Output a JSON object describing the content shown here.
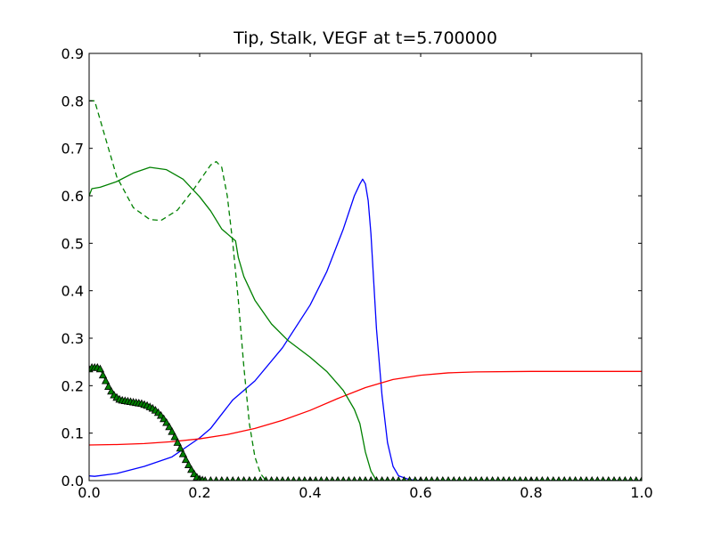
{
  "chart_data": {
    "type": "line",
    "title": "Tip, Stalk, VEGF at t=5.700000",
    "xlabel": "",
    "ylabel": "",
    "xlim": [
      0,
      1
    ],
    "ylim": [
      0,
      0.9
    ],
    "x_ticks": [
      "0.0",
      "0.2",
      "0.4",
      "0.6",
      "0.8",
      "1.0"
    ],
    "y_ticks": [
      "0.0",
      "0.1",
      "0.2",
      "0.3",
      "0.4",
      "0.5",
      "0.6",
      "0.7",
      "0.8",
      "0.9"
    ],
    "grid": false,
    "legend": "none",
    "series": [
      {
        "color": "#0000ff",
        "style": "solid",
        "points": [
          [
            0.0,
            0.01
          ],
          [
            0.01,
            0.009
          ],
          [
            0.05,
            0.015
          ],
          [
            0.1,
            0.03
          ],
          [
            0.15,
            0.05
          ],
          [
            0.2,
            0.09
          ],
          [
            0.22,
            0.11
          ],
          [
            0.24,
            0.14
          ],
          [
            0.26,
            0.17
          ],
          [
            0.3,
            0.21
          ],
          [
            0.35,
            0.28
          ],
          [
            0.4,
            0.37
          ],
          [
            0.43,
            0.44
          ],
          [
            0.46,
            0.53
          ],
          [
            0.48,
            0.6
          ],
          [
            0.49,
            0.625
          ],
          [
            0.495,
            0.635
          ],
          [
            0.5,
            0.625
          ],
          [
            0.505,
            0.59
          ],
          [
            0.51,
            0.52
          ],
          [
            0.515,
            0.42
          ],
          [
            0.52,
            0.32
          ],
          [
            0.53,
            0.18
          ],
          [
            0.54,
            0.08
          ],
          [
            0.55,
            0.03
          ],
          [
            0.56,
            0.01
          ],
          [
            0.58,
            0.002
          ],
          [
            0.6,
            0.0
          ],
          [
            1.0,
            0.0
          ]
        ]
      },
      {
        "color": "#ff0000",
        "style": "solid",
        "points": [
          [
            0.0,
            0.075
          ],
          [
            0.05,
            0.076
          ],
          [
            0.1,
            0.078
          ],
          [
            0.15,
            0.082
          ],
          [
            0.2,
            0.088
          ],
          [
            0.25,
            0.097
          ],
          [
            0.3,
            0.11
          ],
          [
            0.35,
            0.127
          ],
          [
            0.4,
            0.148
          ],
          [
            0.45,
            0.173
          ],
          [
            0.5,
            0.196
          ],
          [
            0.55,
            0.213
          ],
          [
            0.6,
            0.222
          ],
          [
            0.65,
            0.227
          ],
          [
            0.7,
            0.229
          ],
          [
            0.8,
            0.23
          ],
          [
            1.0,
            0.23
          ]
        ]
      },
      {
        "color": "#008000",
        "style": "solid",
        "points": [
          [
            0.0,
            0.6
          ],
          [
            0.005,
            0.615
          ],
          [
            0.02,
            0.618
          ],
          [
            0.05,
            0.63
          ],
          [
            0.08,
            0.648
          ],
          [
            0.11,
            0.66
          ],
          [
            0.14,
            0.655
          ],
          [
            0.17,
            0.635
          ],
          [
            0.2,
            0.598
          ],
          [
            0.22,
            0.568
          ],
          [
            0.24,
            0.53
          ],
          [
            0.26,
            0.51
          ],
          [
            0.265,
            0.505
          ],
          [
            0.27,
            0.47
          ],
          [
            0.28,
            0.43
          ],
          [
            0.3,
            0.38
          ],
          [
            0.33,
            0.33
          ],
          [
            0.36,
            0.295
          ],
          [
            0.4,
            0.26
          ],
          [
            0.43,
            0.23
          ],
          [
            0.46,
            0.19
          ],
          [
            0.48,
            0.15
          ],
          [
            0.49,
            0.12
          ],
          [
            0.5,
            0.06
          ],
          [
            0.51,
            0.02
          ],
          [
            0.52,
            0.0
          ],
          [
            1.0,
            0.0
          ]
        ]
      },
      {
        "color": "#008000",
        "style": "dashed",
        "points": [
          [
            0.0,
            0.8
          ],
          [
            0.01,
            0.8
          ],
          [
            0.03,
            0.72
          ],
          [
            0.05,
            0.64
          ],
          [
            0.08,
            0.575
          ],
          [
            0.11,
            0.55
          ],
          [
            0.13,
            0.548
          ],
          [
            0.16,
            0.57
          ],
          [
            0.19,
            0.615
          ],
          [
            0.22,
            0.665
          ],
          [
            0.23,
            0.672
          ],
          [
            0.24,
            0.66
          ],
          [
            0.25,
            0.6
          ],
          [
            0.26,
            0.5
          ],
          [
            0.27,
            0.38
          ],
          [
            0.28,
            0.24
          ],
          [
            0.29,
            0.12
          ],
          [
            0.3,
            0.05
          ],
          [
            0.31,
            0.015
          ],
          [
            0.32,
            0.0
          ]
        ]
      },
      {
        "color": "#008000",
        "style": "triangle-markers",
        "points": [
          [
            0.0,
            0.235
          ],
          [
            0.005,
            0.238
          ],
          [
            0.01,
            0.238
          ],
          [
            0.015,
            0.238
          ],
          [
            0.02,
            0.235
          ],
          [
            0.025,
            0.222
          ],
          [
            0.03,
            0.21
          ],
          [
            0.035,
            0.198
          ],
          [
            0.04,
            0.188
          ],
          [
            0.045,
            0.18
          ],
          [
            0.05,
            0.175
          ],
          [
            0.055,
            0.171
          ],
          [
            0.06,
            0.169
          ],
          [
            0.065,
            0.168
          ],
          [
            0.07,
            0.167
          ],
          [
            0.075,
            0.166
          ],
          [
            0.08,
            0.165
          ],
          [
            0.085,
            0.164
          ],
          [
            0.09,
            0.163
          ],
          [
            0.095,
            0.162
          ],
          [
            0.1,
            0.16
          ],
          [
            0.105,
            0.158
          ],
          [
            0.11,
            0.155
          ],
          [
            0.115,
            0.152
          ],
          [
            0.12,
            0.148
          ],
          [
            0.125,
            0.143
          ],
          [
            0.13,
            0.137
          ],
          [
            0.135,
            0.13
          ],
          [
            0.14,
            0.122
          ],
          [
            0.145,
            0.113
          ],
          [
            0.15,
            0.103
          ],
          [
            0.155,
            0.092
          ],
          [
            0.16,
            0.08
          ],
          [
            0.165,
            0.068
          ],
          [
            0.17,
            0.056
          ],
          [
            0.175,
            0.044
          ],
          [
            0.18,
            0.033
          ],
          [
            0.185,
            0.023
          ],
          [
            0.19,
            0.014
          ],
          [
            0.195,
            0.007
          ],
          [
            0.2,
            0.003
          ],
          [
            0.205,
            0.001
          ],
          [
            0.21,
            0.0
          ],
          [
            0.22,
            0.0
          ],
          [
            0.23,
            0.0
          ],
          [
            0.24,
            0.0
          ],
          [
            0.25,
            0.0
          ],
          [
            0.26,
            0.0
          ],
          [
            0.27,
            0.0
          ],
          [
            0.28,
            0.0
          ],
          [
            0.29,
            0.0
          ],
          [
            0.3,
            0.0
          ],
          [
            0.31,
            0.0
          ],
          [
            0.32,
            0.0
          ],
          [
            0.33,
            0.0
          ],
          [
            0.34,
            0.0
          ],
          [
            0.35,
            0.0
          ],
          [
            0.36,
            0.0
          ],
          [
            0.37,
            0.0
          ],
          [
            0.38,
            0.0
          ],
          [
            0.39,
            0.0
          ],
          [
            0.4,
            0.0
          ],
          [
            0.41,
            0.0
          ],
          [
            0.42,
            0.0
          ],
          [
            0.43,
            0.0
          ],
          [
            0.44,
            0.0
          ],
          [
            0.45,
            0.0
          ],
          [
            0.46,
            0.0
          ],
          [
            0.47,
            0.0
          ],
          [
            0.48,
            0.0
          ],
          [
            0.49,
            0.0
          ],
          [
            0.5,
            0.0
          ],
          [
            0.51,
            0.0
          ],
          [
            0.52,
            0.0
          ],
          [
            0.53,
            0.0
          ],
          [
            0.54,
            0.0
          ],
          [
            0.55,
            0.0
          ],
          [
            0.56,
            0.0
          ],
          [
            0.57,
            0.0
          ],
          [
            0.58,
            0.0
          ],
          [
            0.59,
            0.0
          ],
          [
            0.6,
            0.0
          ],
          [
            0.61,
            0.0
          ],
          [
            0.62,
            0.0
          ],
          [
            0.63,
            0.0
          ],
          [
            0.64,
            0.0
          ],
          [
            0.65,
            0.0
          ],
          [
            0.66,
            0.0
          ],
          [
            0.67,
            0.0
          ],
          [
            0.68,
            0.0
          ],
          [
            0.69,
            0.0
          ],
          [
            0.7,
            0.0
          ],
          [
            0.71,
            0.0
          ],
          [
            0.72,
            0.0
          ],
          [
            0.73,
            0.0
          ],
          [
            0.74,
            0.0
          ],
          [
            0.75,
            0.0
          ],
          [
            0.76,
            0.0
          ],
          [
            0.77,
            0.0
          ],
          [
            0.78,
            0.0
          ],
          [
            0.79,
            0.0
          ],
          [
            0.8,
            0.0
          ],
          [
            0.81,
            0.0
          ],
          [
            0.82,
            0.0
          ],
          [
            0.83,
            0.0
          ],
          [
            0.84,
            0.0
          ],
          [
            0.85,
            0.0
          ],
          [
            0.86,
            0.0
          ],
          [
            0.87,
            0.0
          ],
          [
            0.88,
            0.0
          ],
          [
            0.89,
            0.0
          ],
          [
            0.9,
            0.0
          ],
          [
            0.91,
            0.0
          ],
          [
            0.92,
            0.0
          ],
          [
            0.93,
            0.0
          ],
          [
            0.94,
            0.0
          ],
          [
            0.95,
            0.0
          ],
          [
            0.96,
            0.0
          ],
          [
            0.97,
            0.0
          ],
          [
            0.98,
            0.0
          ],
          [
            0.99,
            0.0
          ],
          [
            1.0,
            0.0
          ]
        ]
      }
    ]
  }
}
